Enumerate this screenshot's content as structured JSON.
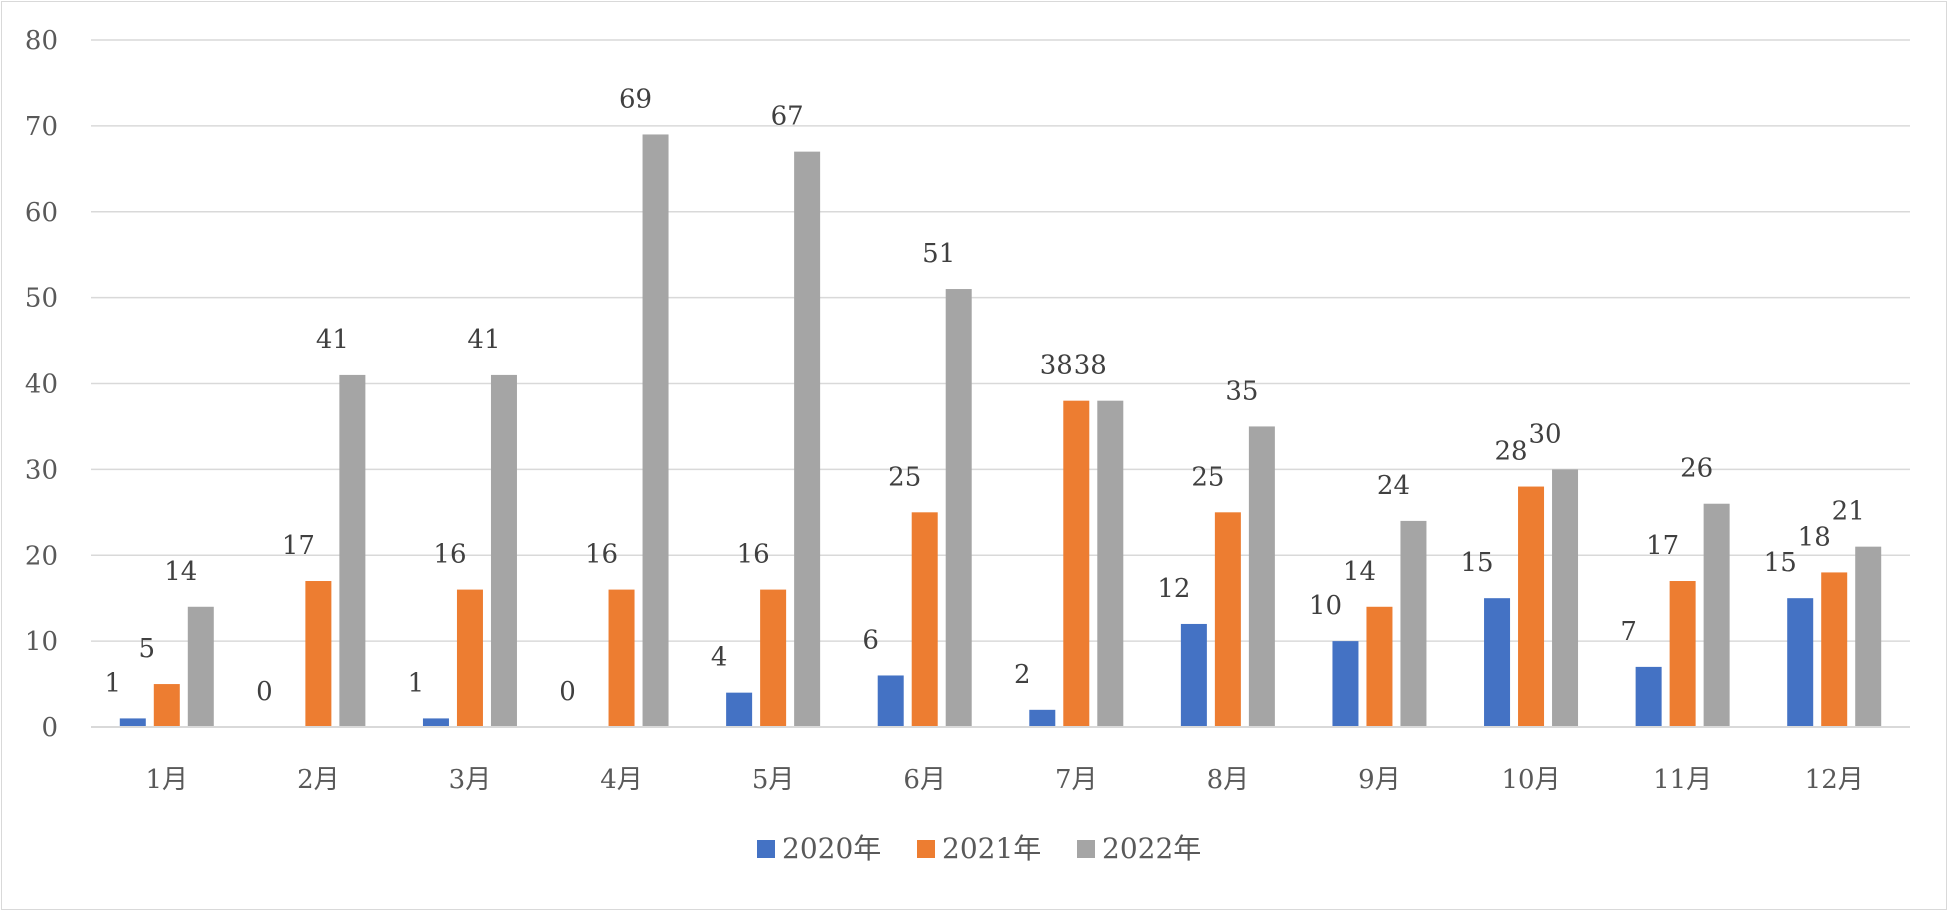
{
  "chart_data": {
    "type": "bar",
    "categories": [
      "1月",
      "2月",
      "3月",
      "4月",
      "5月",
      "6月",
      "7月",
      "8月",
      "9月",
      "10月",
      "11月",
      "12月"
    ],
    "series": [
      {
        "name": "2020年",
        "color": "#4472c4",
        "values": [
          1,
          0,
          1,
          0,
          4,
          6,
          2,
          12,
          10,
          15,
          7,
          15
        ]
      },
      {
        "name": "2021年",
        "color": "#ed7d31",
        "values": [
          5,
          17,
          16,
          16,
          16,
          25,
          38,
          25,
          14,
          28,
          17,
          18
        ]
      },
      {
        "name": "2022年",
        "color": "#a5a5a5",
        "values": [
          14,
          41,
          41,
          69,
          67,
          51,
          38,
          35,
          24,
          30,
          26,
          21
        ]
      }
    ],
    "ylim": [
      0,
      80
    ],
    "yticks": [
      0,
      10,
      20,
      30,
      40,
      50,
      60,
      70,
      80
    ],
    "grid": true,
    "legend_position": "bottom",
    "data_labels": true
  }
}
